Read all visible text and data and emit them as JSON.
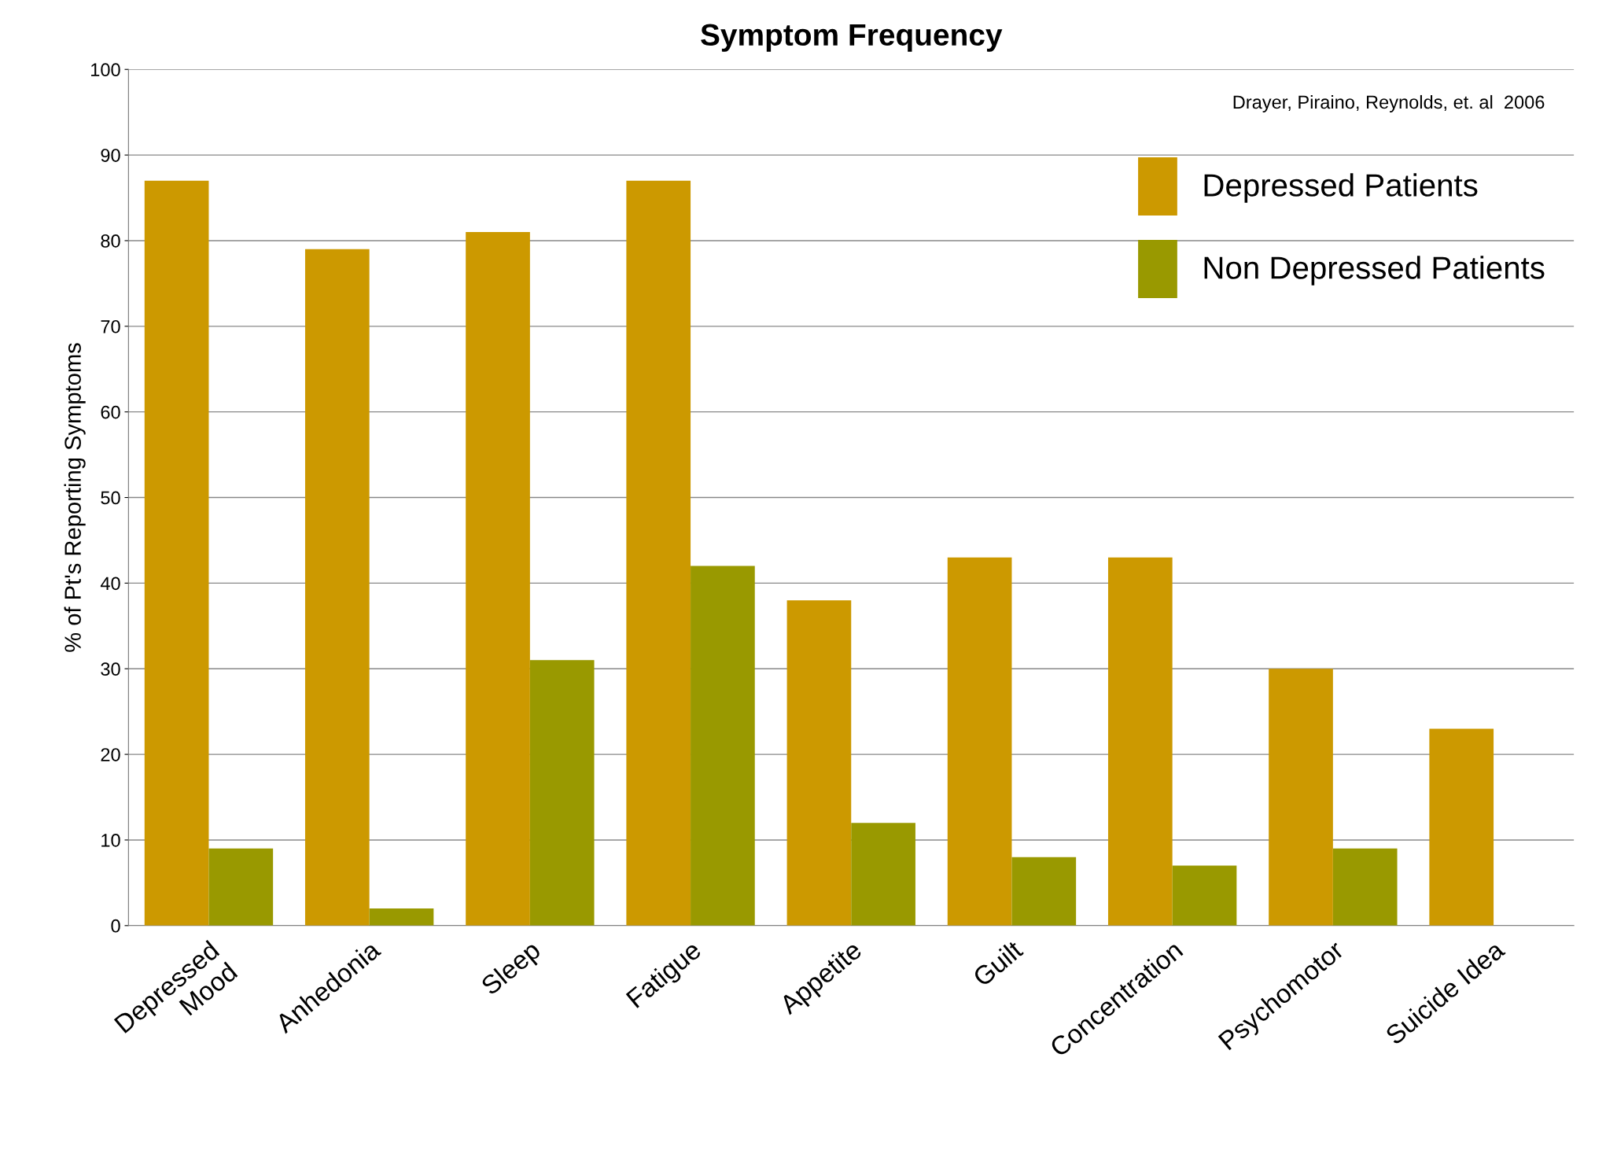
{
  "chart_data": {
    "type": "bar",
    "title": "Symptom Frequency",
    "ylabel": "% of Pt's Reporting Symptoms",
    "annotations": [
      "Drayer, Piraino, Reynolds, et. al  2006"
    ],
    "categories": [
      "Depressed\nMood",
      "Anhedonia",
      "Sleep",
      "Fatigue",
      "Appetite",
      "Guilt",
      "Concentration",
      "Psychomotor",
      "Suicide Idea"
    ],
    "series": [
      {
        "name": "Depressed Patients",
        "color": "#cc9900",
        "values": [
          87,
          79,
          81,
          87,
          38,
          43,
          43,
          30,
          23
        ]
      },
      {
        "name": "Non Depressed Patients",
        "color": "#999900",
        "values": [
          9,
          2,
          31,
          42,
          12,
          8,
          7,
          9,
          0
        ]
      }
    ],
    "ylim": [
      0,
      100
    ],
    "yticks": [
      0,
      10,
      20,
      30,
      40,
      50,
      60,
      70,
      80,
      90,
      100
    ],
    "grid": "y",
    "legend": "top right"
  }
}
